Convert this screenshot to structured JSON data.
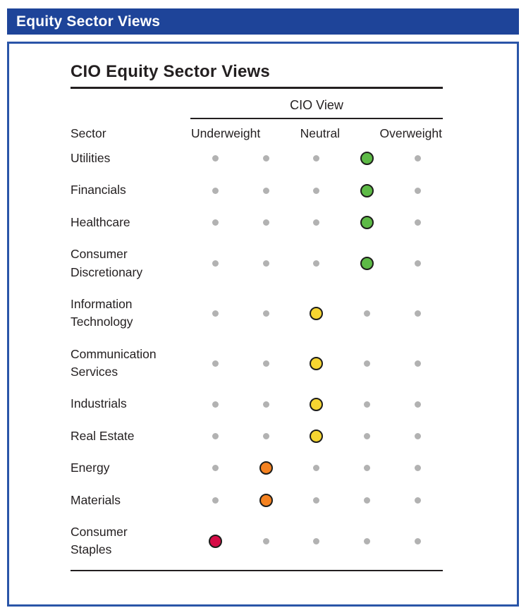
{
  "header": {
    "title": "Equity Sector Views"
  },
  "chart_data": {
    "type": "table",
    "title": "CIO Equity Sector Views",
    "group_header": "CIO View",
    "sector_column_label": "Sector",
    "view_labels": [
      "Underweight",
      "Neutral",
      "Overweight"
    ],
    "positions": 5,
    "colors": {
      "overweight_green": "#5dba46",
      "neutral_yellow": "#f6d531",
      "underweight_orange": "#f58220",
      "underweight_red": "#d60b46",
      "inactive_gray": "#b2b2b2",
      "dot_outline": "#1d1d1b",
      "header_bar_blue": "#1e4499",
      "panel_border_blue": "#2a55a8"
    },
    "rows": [
      {
        "sector": "Utilities",
        "position": 4,
        "view": "Overweight",
        "color": "#5dba46"
      },
      {
        "sector": "Financials",
        "position": 4,
        "view": "Overweight",
        "color": "#5dba46"
      },
      {
        "sector": "Healthcare",
        "position": 4,
        "view": "Overweight",
        "color": "#5dba46"
      },
      {
        "sector": "Consumer Discretionary",
        "position": 4,
        "view": "Overweight",
        "color": "#5dba46"
      },
      {
        "sector": "Information Technology",
        "position": 3,
        "view": "Neutral",
        "color": "#f6d531"
      },
      {
        "sector": "Communication Services",
        "position": 3,
        "view": "Neutral",
        "color": "#f6d531"
      },
      {
        "sector": "Industrials",
        "position": 3,
        "view": "Neutral",
        "color": "#f6d531"
      },
      {
        "sector": "Real Estate",
        "position": 3,
        "view": "Neutral",
        "color": "#f6d531"
      },
      {
        "sector": "Energy",
        "position": 2,
        "view": "Underweight",
        "color": "#f58220"
      },
      {
        "sector": "Materials",
        "position": 2,
        "view": "Underweight",
        "color": "#f58220"
      },
      {
        "sector": "Consumer Staples",
        "position": 1,
        "view": "Underweight",
        "color": "#d60b46"
      }
    ]
  }
}
